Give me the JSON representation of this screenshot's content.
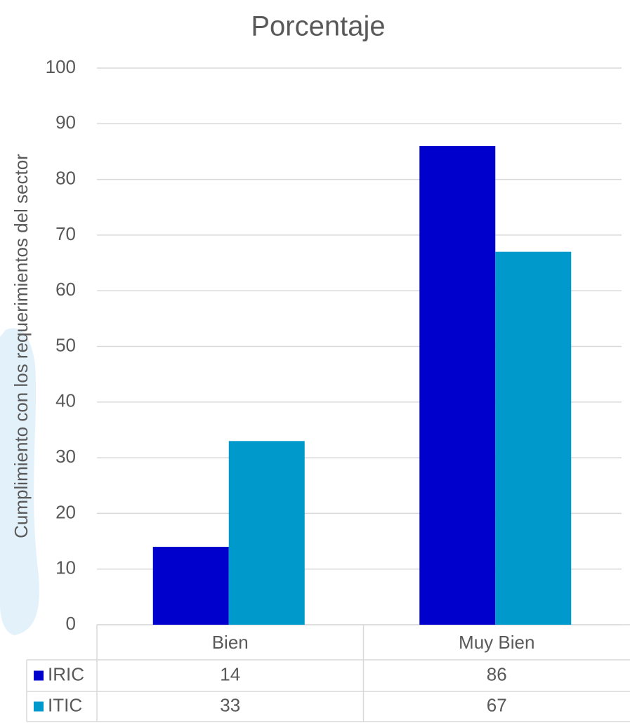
{
  "chart_data": {
    "type": "bar",
    "title": "Porcentaje",
    "y_label": "Cumplimiento con los requerimientos del sector",
    "categories": [
      "Bien",
      "Muy Bien"
    ],
    "series": [
      {
        "name": "IRIC",
        "color": "#0000cc",
        "values": [
          14,
          86
        ]
      },
      {
        "name": "ITIC",
        "color": "#0099cc",
        "values": [
          33,
          67
        ]
      }
    ],
    "ylim": [
      0,
      100
    ],
    "yticks": [
      0,
      10,
      20,
      30,
      40,
      50,
      60,
      70,
      80,
      90,
      100
    ],
    "grid": true
  }
}
